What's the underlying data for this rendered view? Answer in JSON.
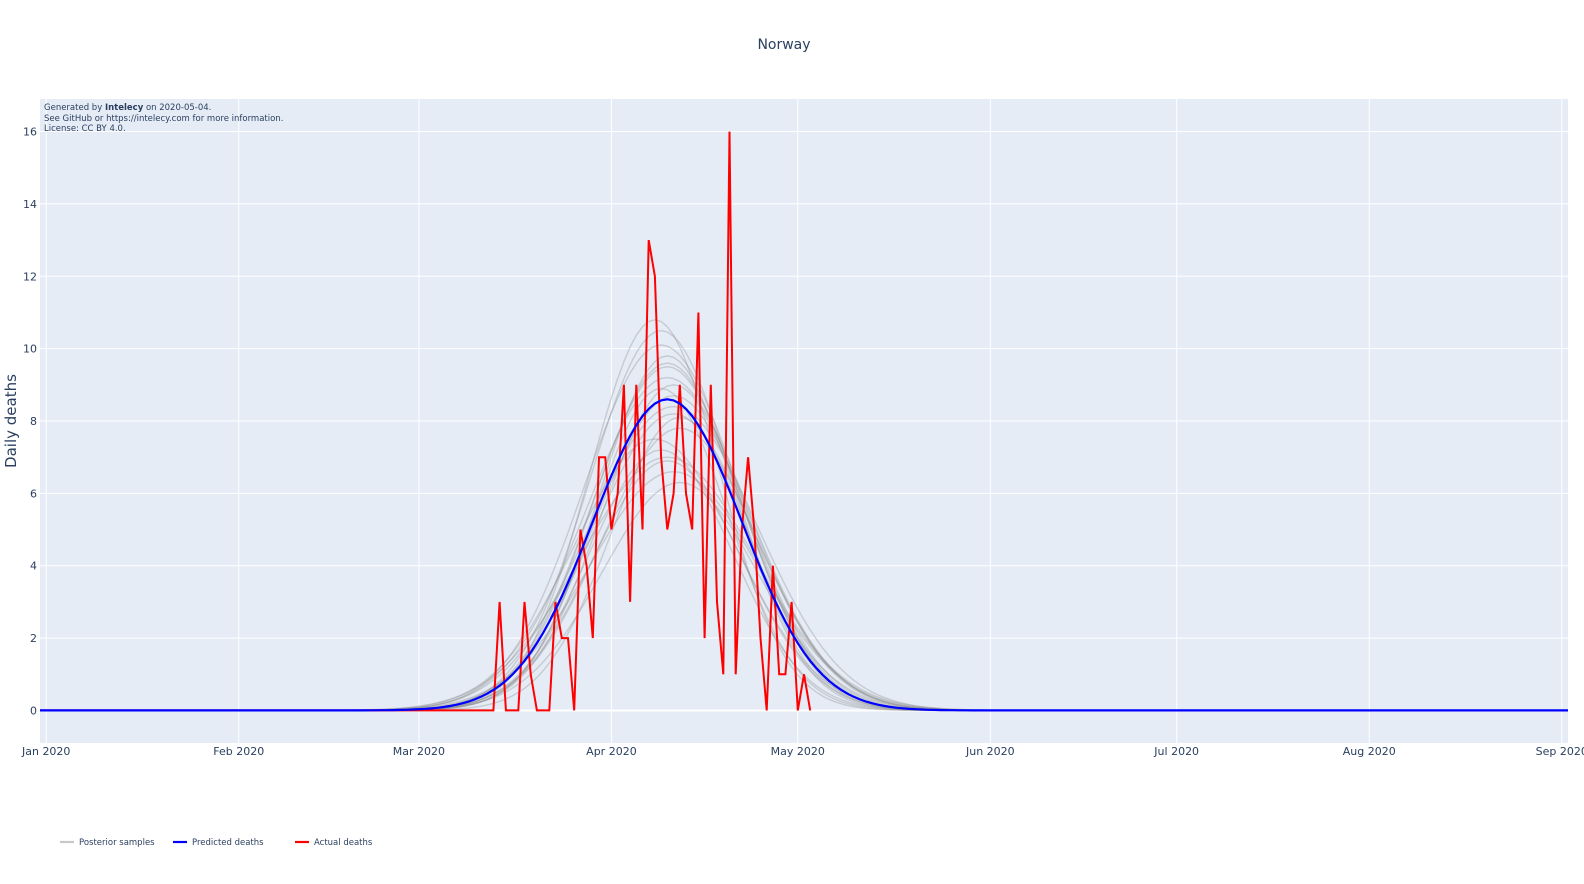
{
  "chart_data": {
    "type": "line",
    "title": "Norway",
    "ylabel": "Daily deaths",
    "xlabel": "",
    "xlim": [
      "2019-12-31",
      "2020-09-02"
    ],
    "ylim": [
      -0.9,
      16.9
    ],
    "x_ticks": [
      "Jan 2020",
      "Feb 2020",
      "Mar 2020",
      "Apr 2020",
      "May 2020",
      "Jun 2020",
      "Jul 2020",
      "Aug 2020",
      "Sep 2020"
    ],
    "y_ticks": [
      0,
      2,
      4,
      6,
      8,
      10,
      12,
      14,
      16
    ],
    "grid": true,
    "legend_position": "bottom-left",
    "annotation": {
      "line1_prefix": "Generated by ",
      "line1_bold": "Intelecy",
      "line1_suffix": " on 2020-05-04.",
      "line2": "See GitHub or https://intelecy.com for more information.",
      "line3": "License: CC BY 4.0."
    },
    "series": [
      {
        "name": "Posterior samples",
        "color": "#c8c8c8",
        "model": "gaussian",
        "peak_dates": [
          "2020-04-08",
          "2020-04-09",
          "2020-04-09",
          "2020-04-10",
          "2020-04-10",
          "2020-04-10",
          "2020-04-11",
          "2020-04-11",
          "2020-04-11",
          "2020-04-12",
          "2020-04-12",
          "2020-04-08",
          "2020-04-09",
          "2020-04-10",
          "2020-04-11",
          "2020-04-12",
          "2020-04-09",
          "2020-04-10",
          "2020-04-11",
          "2020-04-10"
        ],
        "peak_values": [
          10.8,
          10.5,
          10.1,
          9.8,
          9.5,
          9.2,
          9.0,
          8.7,
          8.4,
          8.1,
          7.8,
          7.5,
          7.2,
          6.9,
          6.6,
          6.3,
          8.9,
          9.6,
          8.2,
          7.0
        ],
        "sd_days": [
          10.5,
          11.5,
          12.5,
          11.0,
          12.0,
          13.0,
          11.5,
          12.5,
          13.5,
          11.0,
          12.5,
          13.0,
          11.5,
          12.0,
          13.5,
          12.5,
          10.8,
          11.8,
          12.8,
          14.0
        ]
      },
      {
        "name": "Predicted deaths",
        "color": "#0000ff",
        "model": "gaussian",
        "peak_date": "2020-04-10",
        "peak_value": 8.6,
        "sd_days": 12
      },
      {
        "name": "Actual deaths",
        "color": "#ff0000",
        "x": [
          "2020-03-13",
          "2020-03-14",
          "2020-03-15",
          "2020-03-16",
          "2020-03-17",
          "2020-03-18",
          "2020-03-19",
          "2020-03-20",
          "2020-03-21",
          "2020-03-22",
          "2020-03-23",
          "2020-03-24",
          "2020-03-25",
          "2020-03-26",
          "2020-03-27",
          "2020-03-28",
          "2020-03-29",
          "2020-03-30",
          "2020-03-31",
          "2020-04-01",
          "2020-04-02",
          "2020-04-03",
          "2020-04-04",
          "2020-04-05",
          "2020-04-06",
          "2020-04-07",
          "2020-04-08",
          "2020-04-09",
          "2020-04-10",
          "2020-04-11",
          "2020-04-12",
          "2020-04-13",
          "2020-04-14",
          "2020-04-15",
          "2020-04-16",
          "2020-04-17",
          "2020-04-18",
          "2020-04-19",
          "2020-04-20",
          "2020-04-21",
          "2020-04-22",
          "2020-04-23",
          "2020-04-24",
          "2020-04-25",
          "2020-04-26",
          "2020-04-27",
          "2020-04-28",
          "2020-04-29",
          "2020-04-30",
          "2020-05-01",
          "2020-05-02",
          "2020-05-03"
        ],
        "y": [
          0,
          3,
          0,
          0,
          0,
          3,
          1,
          0,
          0,
          0,
          3,
          2,
          2,
          0,
          5,
          4,
          2,
          7,
          7,
          5,
          6,
          9,
          3,
          9,
          5,
          13,
          12,
          7,
          5,
          6,
          9,
          6,
          5,
          11,
          2,
          9,
          3,
          1,
          16,
          1,
          5,
          7,
          5,
          2,
          0,
          4,
          1,
          1,
          3,
          0,
          1,
          0
        ]
      }
    ]
  }
}
